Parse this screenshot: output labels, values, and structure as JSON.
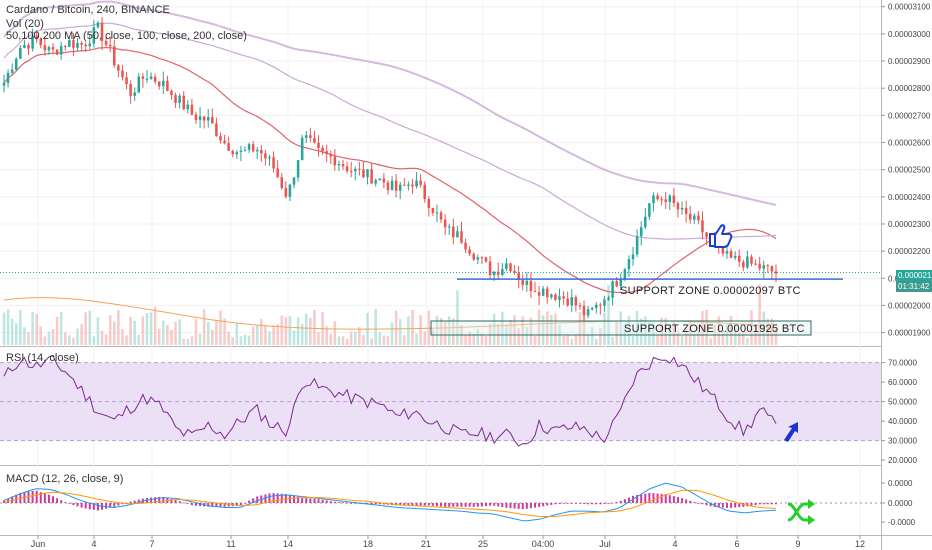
{
  "header": {
    "symbol_line": "Cardano / Bitcoin, 240, BINANCE",
    "vol_line": "Vol (20)",
    "ma_line": "50,100,200 MA (50, close, 100, close, 200, close)"
  },
  "annotations": {
    "support_zone_1": "SUPPORT ZONE 0.00002097 BTC",
    "support_zone_2": "SUPPORT ZONE 0.00001925 BTC"
  },
  "last_price_tag": "0.00002121",
  "countdown_tag": "01:31:42",
  "colors": {
    "bull": "#26a69a",
    "bear": "#ef5350",
    "ma50": "#e0626b",
    "ma100": "#c9a9d6",
    "rsi_line": "#7b2a8f",
    "rsi_band": "#ece0f7",
    "macd_line": "#2196f3",
    "signal_line": "#ff9800",
    "support_line": "#3b6fd4"
  },
  "chart_data": [
    {
      "type": "candlestick",
      "panel": "price",
      "symbol": "Cardano / Bitcoin",
      "timeframe": "240",
      "exchange": "BINANCE",
      "y_tick_labels": [
        "0.00003100",
        "0.00003000",
        "0.00002900",
        "0.00002800",
        "0.00002700",
        "0.00002600",
        "0.00002500",
        "0.00002400",
        "0.00002300",
        "0.00002200",
        "0.00002100",
        "0.00002000",
        "0.00001900"
      ],
      "x_tick_labels": [
        "Jun",
        "4",
        "7",
        "11",
        "14",
        "18",
        "21",
        "25",
        "04:00",
        "Jul",
        "4",
        "6",
        "9",
        "12"
      ],
      "ylim": [
        1.88e-05,
        3.11e-05
      ],
      "close_path": [
        2.82,
        2.95,
        2.98,
        2.93,
        2.97,
        2.96,
        3.02,
        2.9,
        2.78,
        2.85,
        2.82,
        2.76,
        2.7,
        2.68,
        2.6,
        2.56,
        2.58,
        2.52,
        2.4,
        2.62,
        2.56,
        2.54,
        2.5,
        2.48,
        2.46,
        2.42,
        2.46,
        2.38,
        2.28,
        2.25,
        2.18,
        2.12,
        2.16,
        2.08,
        2.06,
        2.04,
        2.02,
        1.96,
        2.02,
        2.1,
        2.22,
        2.38,
        2.4,
        2.34,
        2.3,
        2.22,
        2.17,
        2.16,
        2.14,
        2.12
      ],
      "support_levels": [
        2.097e-05,
        1.925e-05
      ],
      "moving_averages": [
        "MA 50",
        "MA 100",
        "MA 200"
      ]
    },
    {
      "type": "line",
      "panel": "rsi",
      "label": "RSI (14, close)",
      "y_tick_labels": [
        "70.0000",
        "60.0000",
        "50.0000",
        "40.0000",
        "30.0000",
        "20.0000"
      ],
      "ylim": [
        18,
        77
      ],
      "bands": [
        30,
        70
      ],
      "values": [
        62,
        72,
        68,
        71,
        65,
        55,
        45,
        40,
        47,
        52,
        47,
        35,
        32,
        38,
        33,
        40,
        46,
        38,
        35,
        62,
        57,
        55,
        52,
        50,
        48,
        42,
        45,
        40,
        37,
        33,
        34,
        32,
        33,
        28,
        38,
        35,
        37,
        36,
        30,
        42,
        62,
        70,
        74,
        69,
        60,
        52,
        42,
        34,
        46,
        37
      ]
    },
    {
      "type": "bar+line",
      "panel": "macd",
      "label": "MACD (12, 26, close, 9)",
      "y_tick_labels": [
        "0.0000",
        "0.0000",
        "-0.0000"
      ],
      "histogram_values": [
        0.2,
        0.8,
        1.0,
        0.6,
        0.0,
        -0.4,
        -0.6,
        -0.3,
        0.1,
        0.4,
        0.5,
        0.2,
        -0.2,
        -0.3,
        -0.3,
        -0.2,
        0.5,
        0.8,
        0.7,
        0.4,
        0.3,
        0.1,
        0.0,
        -0.1,
        -0.1,
        -0.2,
        -0.2,
        -0.2,
        -0.3,
        -0.3,
        -0.3,
        -0.2,
        -0.4,
        -0.5,
        -0.3,
        -0.1,
        0.0,
        -0.1,
        -0.1,
        0.1,
        0.6,
        0.8,
        0.7,
        0.4,
        0.0,
        -0.3,
        -0.4,
        -0.3,
        -0.1,
        -0.1
      ],
      "macd_values": [
        0.3,
        1.0,
        1.6,
        1.5,
        0.9,
        0.2,
        -0.3,
        -0.5,
        -0.2,
        0.3,
        0.6,
        0.5,
        0.1,
        -0.3,
        -0.5,
        -0.5,
        0.2,
        0.8,
        0.9,
        0.7,
        0.5,
        0.3,
        0.1,
        -0.1,
        -0.3,
        -0.5,
        -0.6,
        -0.7,
        -0.8,
        -0.9,
        -1.1,
        -1.2,
        -1.6,
        -2.0,
        -1.8,
        -1.3,
        -0.9,
        -0.9,
        -1.0,
        -0.6,
        0.5,
        1.6,
        2.2,
        1.8,
        0.8,
        -0.2,
        -0.9,
        -1.1,
        -0.9,
        -0.8
      ],
      "signal_values": [
        0.1,
        0.5,
        0.9,
        1.2,
        1.1,
        0.8,
        0.4,
        0.1,
        -0.1,
        0.0,
        0.2,
        0.4,
        0.3,
        0.1,
        -0.1,
        -0.3,
        -0.2,
        0.2,
        0.5,
        0.6,
        0.6,
        0.5,
        0.3,
        0.2,
        0.0,
        -0.2,
        -0.3,
        -0.4,
        -0.5,
        -0.6,
        -0.7,
        -0.8,
        -1.0,
        -1.3,
        -1.5,
        -1.5,
        -1.3,
        -1.1,
        -1.0,
        -0.9,
        -0.5,
        0.2,
        0.9,
        1.4,
        1.4,
        0.9,
        0.3,
        -0.2,
        -0.5,
        -0.6
      ]
    }
  ]
}
